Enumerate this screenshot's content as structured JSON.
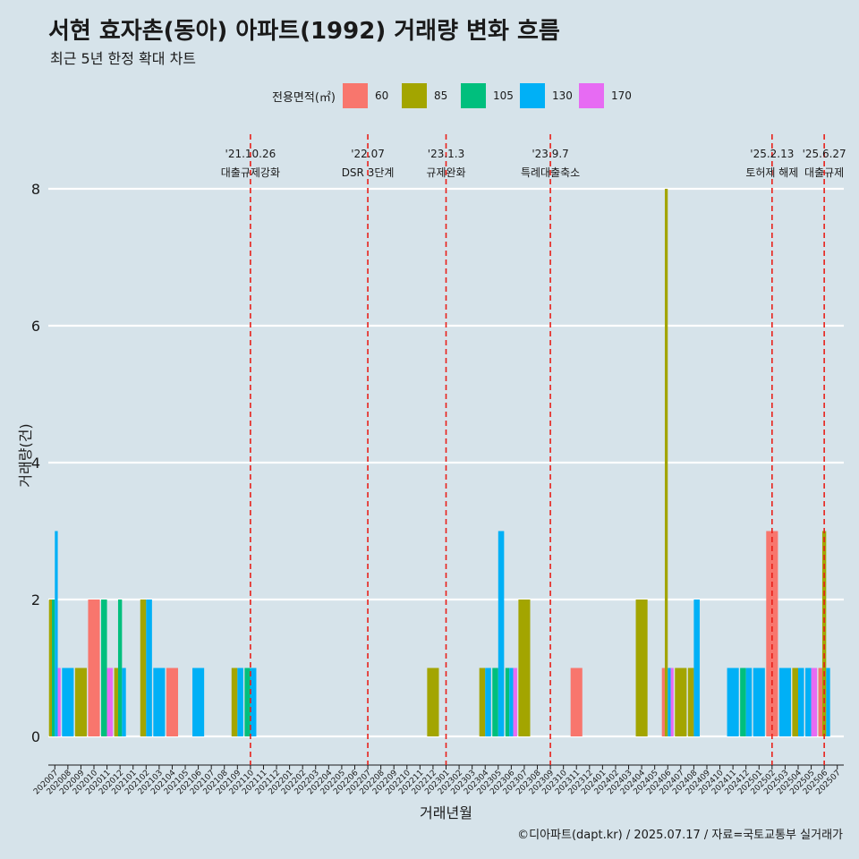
{
  "title": "서현 효자촌(동아) 아파트(1992) 거래량 변화 흐름",
  "subtitle": "최근 5년 한정 확대 차트",
  "caption": "©디아파트(dapt.kr) / 2025.07.17 / 자료=국토교통부 실거래가",
  "legend": {
    "title": "전용면적(㎡)",
    "items": [
      {
        "label": "60",
        "color": "#f8766d"
      },
      {
        "label": "85",
        "color": "#a3a500"
      },
      {
        "label": "105",
        "color": "#00bf7d"
      },
      {
        "label": "130",
        "color": "#00b0f6"
      },
      {
        "label": "170",
        "color": "#e76bf3"
      }
    ]
  },
  "chart_data": {
    "type": "bar",
    "xlabel": "거래년월",
    "ylabel": "거래량(건)",
    "ylim": [
      0,
      8
    ],
    "yticks": [
      0,
      2,
      4,
      6,
      8
    ],
    "grid": "horizontal",
    "categories": [
      "202007",
      "202008",
      "202009",
      "202010",
      "202011",
      "202012",
      "202101",
      "202102",
      "202103",
      "202104",
      "202105",
      "202106",
      "202107",
      "202108",
      "202109",
      "202110",
      "202111",
      "202112",
      "202201",
      "202202",
      "202203",
      "202204",
      "202205",
      "202206",
      "202207",
      "202208",
      "202209",
      "202210",
      "202211",
      "202212",
      "202301",
      "202302",
      "202303",
      "202304",
      "202305",
      "202306",
      "202307",
      "202308",
      "202309",
      "202310",
      "202311",
      "202312",
      "202401",
      "202402",
      "202403",
      "202404",
      "202405",
      "202406",
      "202407",
      "202408",
      "202409",
      "202410",
      "202411",
      "202412",
      "202501",
      "202502",
      "202503",
      "202504",
      "202505",
      "202506",
      "202507"
    ],
    "series": [
      {
        "name": "60",
        "values": [
          0,
          0,
          0,
          2,
          0,
          0,
          0,
          0,
          0,
          1,
          0,
          0,
          0,
          0,
          0,
          0,
          0,
          0,
          0,
          0,
          0,
          0,
          0,
          0,
          0,
          0,
          0,
          0,
          0,
          0,
          0,
          0,
          0,
          0,
          0,
          0,
          0,
          0,
          0,
          0,
          1,
          0,
          0,
          0,
          0,
          0,
          0,
          1,
          0,
          0,
          0,
          0,
          0,
          0,
          0,
          3,
          0,
          0,
          0,
          1,
          0
        ]
      },
      {
        "name": "85",
        "values": [
          2,
          0,
          1,
          0,
          0,
          1,
          0,
          2,
          0,
          0,
          0,
          0,
          0,
          0,
          1,
          0,
          0,
          0,
          0,
          0,
          0,
          0,
          0,
          0,
          0,
          0,
          0,
          0,
          0,
          1,
          0,
          0,
          0,
          1,
          0,
          0,
          2,
          0,
          0,
          0,
          0,
          0,
          0,
          0,
          0,
          2,
          0,
          8,
          1,
          1,
          0,
          0,
          0,
          0,
          0,
          0,
          0,
          1,
          0,
          3,
          0
        ]
      },
      {
        "name": "105",
        "values": [
          2,
          0,
          0,
          0,
          2,
          2,
          0,
          0,
          0,
          0,
          0,
          0,
          0,
          0,
          0,
          1,
          0,
          0,
          0,
          0,
          0,
          0,
          0,
          0,
          0,
          0,
          0,
          0,
          0,
          0,
          0,
          0,
          0,
          0,
          1,
          1,
          0,
          0,
          0,
          0,
          0,
          0,
          0,
          0,
          0,
          0,
          0,
          0,
          0,
          0,
          0,
          0,
          0,
          1,
          0,
          0,
          0,
          0,
          0,
          0,
          0
        ]
      },
      {
        "name": "130",
        "values": [
          3,
          1,
          0,
          0,
          0,
          1,
          0,
          2,
          1,
          0,
          0,
          1,
          0,
          0,
          1,
          1,
          0,
          0,
          0,
          0,
          0,
          0,
          0,
          0,
          0,
          0,
          0,
          0,
          0,
          0,
          0,
          0,
          0,
          1,
          3,
          1,
          0,
          0,
          0,
          0,
          0,
          0,
          0,
          0,
          0,
          0,
          0,
          1,
          0,
          2,
          0,
          0,
          1,
          1,
          1,
          0,
          1,
          1,
          1,
          1,
          0
        ]
      },
      {
        "name": "170",
        "values": [
          1,
          0,
          0,
          0,
          1,
          0,
          0,
          0,
          0,
          0,
          0,
          0,
          0,
          0,
          0,
          0,
          0,
          0,
          0,
          0,
          0,
          0,
          0,
          0,
          0,
          0,
          0,
          0,
          0,
          0,
          0,
          0,
          0,
          0,
          0,
          1,
          0,
          0,
          0,
          0,
          0,
          0,
          0,
          0,
          0,
          0,
          0,
          1,
          0,
          0,
          0,
          0,
          0,
          0,
          0,
          0,
          0,
          0,
          1,
          0,
          0
        ]
      }
    ],
    "events": [
      {
        "date": "'21.10.26",
        "label": "대출규제강화",
        "at": "202110"
      },
      {
        "date": "'22.07",
        "label": "DSR 3단계",
        "at": "202207"
      },
      {
        "date": "'23.1.3",
        "label": "규제완화",
        "at": "202301"
      },
      {
        "date": "'23.9.7",
        "label": "특례대출축소",
        "at": "202309"
      },
      {
        "date": "'25.2.13",
        "label": "토허제 해제",
        "at": "202502"
      },
      {
        "date": "'25.6.27",
        "label": "대출규제",
        "at": "202506"
      }
    ]
  }
}
